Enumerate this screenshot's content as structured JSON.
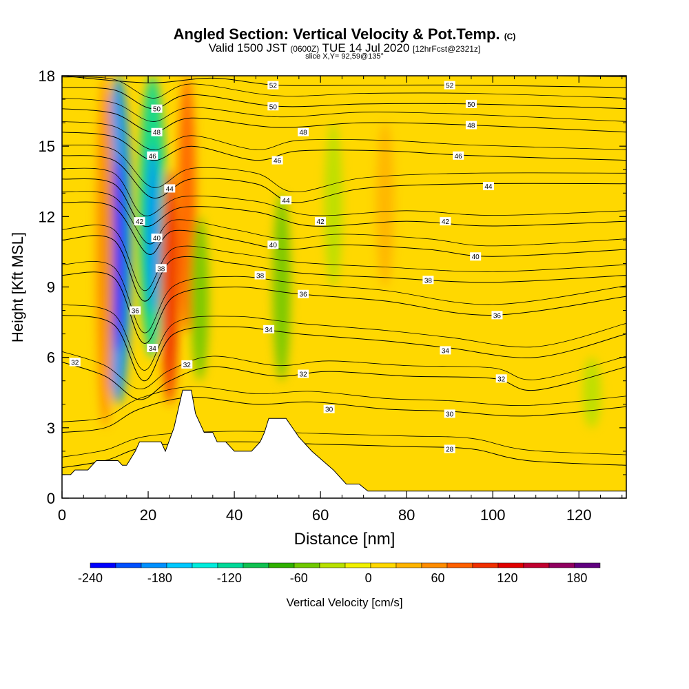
{
  "title": {
    "main": "Angled Section: Vertical Velocity & Pot.Temp.",
    "copyright": "(C)",
    "valid_prefix": "Valid 1500 JST",
    "valid_zulu": "(0600Z)",
    "valid_date": "TUE 14 Jul 2020",
    "forecast": "[12hrFcst@2321z]",
    "slice": "slice X,Y= 92,59@135°"
  },
  "chart_data": {
    "type": "heatmap",
    "xlabel": "Distance [nm]",
    "ylabel": "Height [Kft MSL]",
    "xlim": [
      0,
      131
    ],
    "ylim": [
      0,
      18
    ],
    "x_ticks": [
      0,
      20,
      40,
      60,
      80,
      100,
      120
    ],
    "y_ticks": [
      0,
      3,
      6,
      9,
      12,
      15,
      18
    ],
    "colorbar": {
      "label": "Vertical Velocity [cm/s]",
      "min": -240,
      "max": 200,
      "tick_values": [
        -240,
        -180,
        -120,
        -60,
        0,
        60,
        120,
        180
      ],
      "colors": [
        "#0000ff",
        "#0050ff",
        "#0090ff",
        "#00c8ff",
        "#00ecdc",
        "#00d898",
        "#10c050",
        "#30b000",
        "#70c800",
        "#b8e000",
        "#f0f000",
        "#ffd800",
        "#ffb400",
        "#ff8c00",
        "#ff6000",
        "#f03000",
        "#e00000",
        "#c00030",
        "#900060",
        "#600080"
      ]
    },
    "terrain": [
      [
        0,
        1.0
      ],
      [
        2,
        1.0
      ],
      [
        3,
        1.2
      ],
      [
        6,
        1.2
      ],
      [
        8,
        1.6
      ],
      [
        13,
        1.6
      ],
      [
        14,
        1.4
      ],
      [
        15,
        1.4
      ],
      [
        17,
        2.0
      ],
      [
        18,
        2.4
      ],
      [
        23,
        2.4
      ],
      [
        24,
        2.0
      ],
      [
        26,
        3.0
      ],
      [
        28,
        4.6
      ],
      [
        30,
        4.6
      ],
      [
        31,
        3.6
      ],
      [
        33,
        2.8
      ],
      [
        35,
        2.8
      ],
      [
        36,
        2.4
      ],
      [
        38,
        2.4
      ],
      [
        40,
        2.0
      ],
      [
        44,
        2.0
      ],
      [
        46,
        2.4
      ],
      [
        47,
        2.8
      ],
      [
        48,
        3.4
      ],
      [
        52,
        3.4
      ],
      [
        55,
        2.6
      ],
      [
        58,
        2.0
      ],
      [
        63,
        1.2
      ],
      [
        66,
        0.6
      ],
      [
        69,
        0.6
      ],
      [
        71,
        0.3
      ],
      [
        131,
        0.3
      ]
    ],
    "velocity_features": [
      {
        "x": 13,
        "bottom": 4,
        "top": 18,
        "value": -180
      },
      {
        "x": 21,
        "bottom": 6,
        "top": 18,
        "value": -120
      },
      {
        "x": 10,
        "bottom": 3,
        "top": 18,
        "value": 60
      },
      {
        "x": 25,
        "bottom": 4,
        "top": 14,
        "value": 90
      },
      {
        "x": 29,
        "bottom": 7,
        "top": 18,
        "value": 80
      },
      {
        "x": 32,
        "bottom": 5,
        "top": 12,
        "value": -60
      },
      {
        "x": 51,
        "bottom": 5,
        "top": 13,
        "value": -60
      },
      {
        "x": 63,
        "bottom": 9,
        "top": 16,
        "value": -30
      },
      {
        "x": 75,
        "bottom": 9,
        "top": 16,
        "value": 30
      },
      {
        "x": 123,
        "bottom": 3,
        "top": 6,
        "value": -40
      }
    ],
    "isentropes": [
      {
        "label": "28",
        "base": 2.0,
        "pts": [
          [
            0,
            1.3
          ],
          [
            10,
            1.6
          ],
          [
            20,
            2.2
          ],
          [
            40,
            2.4
          ],
          [
            60,
            2.3
          ],
          [
            80,
            2.2
          ],
          [
            95,
            2.1
          ],
          [
            108,
            1.6
          ],
          [
            131,
            1.4
          ]
        ]
      },
      {
        "label": "30",
        "base": 3.6,
        "pts": [
          [
            0,
            2.8
          ],
          [
            10,
            3.0
          ],
          [
            18,
            3.8
          ],
          [
            30,
            4.3
          ],
          [
            45,
            4.0
          ],
          [
            58,
            4.1
          ],
          [
            75,
            3.8
          ],
          [
            90,
            3.7
          ],
          [
            108,
            3.5
          ],
          [
            131,
            3.9
          ]
        ]
      },
      {
        "label": "32",
        "base": 5.2,
        "pts": [
          [
            0,
            5.8
          ],
          [
            10,
            5.2
          ],
          [
            18,
            4.2
          ],
          [
            25,
            5.0
          ],
          [
            35,
            5.6
          ],
          [
            50,
            5.2
          ],
          [
            62,
            5.4
          ],
          [
            80,
            5.2
          ],
          [
            100,
            5.1
          ],
          [
            110,
            4.6
          ],
          [
            131,
            5.6
          ]
        ]
      },
      {
        "label": "34",
        "base": 6.8,
        "pts": [
          [
            0,
            7.8
          ],
          [
            12,
            7.4
          ],
          [
            19,
            5.0
          ],
          [
            26,
            7.0
          ],
          [
            40,
            7.3
          ],
          [
            55,
            7.0
          ],
          [
            75,
            6.7
          ],
          [
            90,
            6.4
          ],
          [
            110,
            6.0
          ],
          [
            131,
            7.0
          ]
        ]
      },
      {
        "label": "36",
        "base": 8.4,
        "pts": [
          [
            0,
            9.5
          ],
          [
            12,
            9.4
          ],
          [
            19,
            6.6
          ],
          [
            26,
            8.6
          ],
          [
            40,
            9.0
          ],
          [
            55,
            8.7
          ],
          [
            75,
            8.4
          ],
          [
            100,
            7.8
          ],
          [
            131,
            8.6
          ]
        ]
      },
      {
        "label": "38",
        "base": 10.0,
        "pts": [
          [
            0,
            11.0
          ],
          [
            12,
            11.0
          ],
          [
            19,
            8.4
          ],
          [
            26,
            10.2
          ],
          [
            40,
            10.0
          ],
          [
            55,
            9.6
          ],
          [
            75,
            9.4
          ],
          [
            100,
            9.2
          ],
          [
            131,
            9.5
          ]
        ]
      },
      {
        "label": "40",
        "base": 11.6,
        "pts": [
          [
            0,
            12.6
          ],
          [
            12,
            12.4
          ],
          [
            20,
            10.4
          ],
          [
            26,
            11.4
          ],
          [
            40,
            11.0
          ],
          [
            52,
            10.6
          ],
          [
            65,
            10.8
          ],
          [
            85,
            10.6
          ],
          [
            100,
            10.3
          ],
          [
            131,
            10.6
          ]
        ]
      },
      {
        "label": "42",
        "base": 12.8,
        "pts": [
          [
            0,
            13.6
          ],
          [
            12,
            13.4
          ],
          [
            19,
            11.6
          ],
          [
            28,
            12.4
          ],
          [
            45,
            12.2
          ],
          [
            58,
            11.6
          ],
          [
            80,
            11.8
          ],
          [
            100,
            11.6
          ],
          [
            131,
            11.8
          ]
        ]
      },
      {
        "label": "44",
        "base": 13.8,
        "pts": [
          [
            0,
            14.6
          ],
          [
            12,
            14.4
          ],
          [
            21,
            12.8
          ],
          [
            30,
            13.6
          ],
          [
            45,
            13.4
          ],
          [
            54,
            12.6
          ],
          [
            70,
            13.2
          ],
          [
            95,
            13.4
          ],
          [
            131,
            13.4
          ]
        ]
      },
      {
        "label": "46",
        "base": 15.0,
        "pts": [
          [
            0,
            15.6
          ],
          [
            12,
            15.4
          ],
          [
            21,
            14.4
          ],
          [
            30,
            15.0
          ],
          [
            45,
            14.4
          ],
          [
            55,
            14.8
          ],
          [
            75,
            14.8
          ],
          [
            95,
            14.6
          ],
          [
            131,
            14.4
          ]
        ]
      },
      {
        "label": "48",
        "base": 16.2,
        "pts": [
          [
            0,
            16.6
          ],
          [
            12,
            16.4
          ],
          [
            21,
            15.6
          ],
          [
            30,
            16.2
          ],
          [
            50,
            15.8
          ],
          [
            70,
            16.0
          ],
          [
            95,
            15.9
          ],
          [
            131,
            15.6
          ]
        ]
      },
      {
        "label": "50",
        "base": 17.2,
        "pts": [
          [
            0,
            17.5
          ],
          [
            12,
            17.4
          ],
          [
            21,
            16.6
          ],
          [
            30,
            17.2
          ],
          [
            50,
            16.7
          ],
          [
            70,
            16.8
          ],
          [
            95,
            16.8
          ],
          [
            131,
            16.6
          ]
        ]
      },
      {
        "label": "52",
        "base": 17.8,
        "pts": [
          [
            0,
            18.0
          ],
          [
            20,
            17.7
          ],
          [
            35,
            17.9
          ],
          [
            50,
            17.6
          ],
          [
            70,
            17.6
          ],
          [
            95,
            17.6
          ],
          [
            131,
            17.5
          ]
        ]
      }
    ],
    "isentrope_labels": [
      {
        "label": "32",
        "x": 3,
        "y": 5.8
      },
      {
        "label": "34",
        "x": 21,
        "y": 6.4
      },
      {
        "label": "36",
        "x": 17,
        "y": 8.0
      },
      {
        "label": "38",
        "x": 23,
        "y": 9.8
      },
      {
        "label": "40",
        "x": 22,
        "y": 11.1
      },
      {
        "label": "42",
        "x": 18,
        "y": 11.8
      },
      {
        "label": "44",
        "x": 25,
        "y": 13.2
      },
      {
        "label": "46",
        "x": 21,
        "y": 14.6
      },
      {
        "label": "48",
        "x": 22,
        "y": 15.6
      },
      {
        "label": "50",
        "x": 22,
        "y": 16.6
      },
      {
        "label": "32",
        "x": 29,
        "y": 5.7
      },
      {
        "label": "34",
        "x": 48,
        "y": 7.2
      },
      {
        "label": "36",
        "x": 56,
        "y": 8.7
      },
      {
        "label": "38",
        "x": 46,
        "y": 9.5
      },
      {
        "label": "40",
        "x": 49,
        "y": 10.8
      },
      {
        "label": "42",
        "x": 60,
        "y": 11.8
      },
      {
        "label": "44",
        "x": 52,
        "y": 12.7
      },
      {
        "label": "46",
        "x": 50,
        "y": 14.4
      },
      {
        "label": "48",
        "x": 56,
        "y": 15.6
      },
      {
        "label": "50",
        "x": 49,
        "y": 16.7
      },
      {
        "label": "52",
        "x": 49,
        "y": 17.6
      },
      {
        "label": "30",
        "x": 62,
        "y": 3.8
      },
      {
        "label": "32",
        "x": 56,
        "y": 5.3
      },
      {
        "label": "30",
        "x": 90,
        "y": 3.6
      },
      {
        "label": "28",
        "x": 90,
        "y": 2.1
      },
      {
        "label": "34",
        "x": 89,
        "y": 6.3
      },
      {
        "label": "32",
        "x": 102,
        "y": 5.1
      },
      {
        "label": "36",
        "x": 101,
        "y": 7.8
      },
      {
        "label": "38",
        "x": 85,
        "y": 9.3
      },
      {
        "label": "40",
        "x": 96,
        "y": 10.3
      },
      {
        "label": "42",
        "x": 89,
        "y": 11.8
      },
      {
        "label": "44",
        "x": 99,
        "y": 13.3
      },
      {
        "label": "46",
        "x": 92,
        "y": 14.6
      },
      {
        "label": "48",
        "x": 95,
        "y": 15.9
      },
      {
        "label": "50",
        "x": 95,
        "y": 16.8
      },
      {
        "label": "52",
        "x": 90,
        "y": 17.6
      }
    ]
  }
}
